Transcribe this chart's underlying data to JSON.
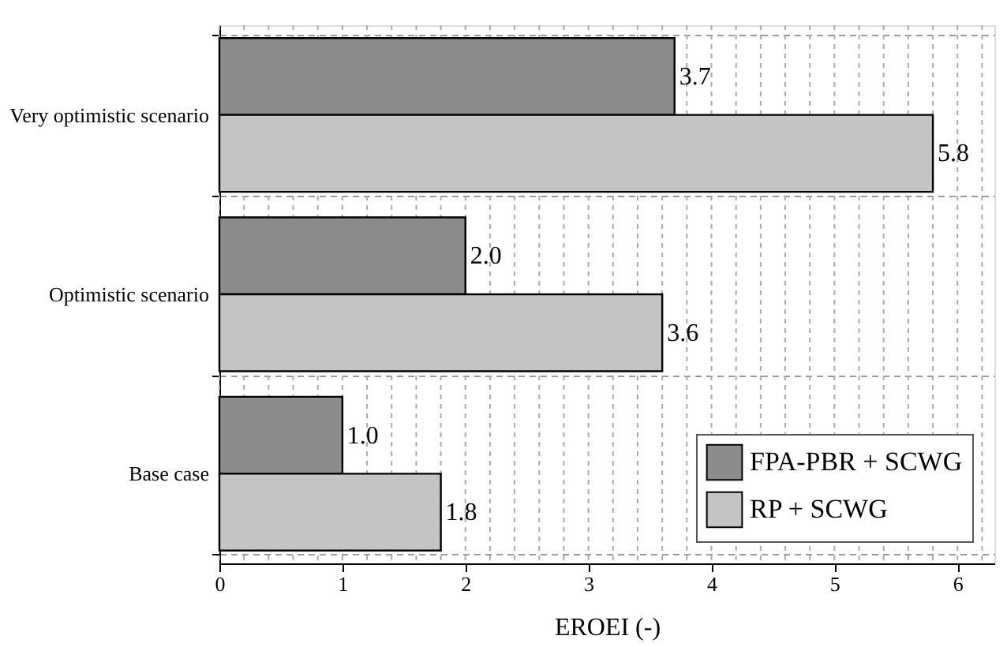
{
  "chart_data": {
    "type": "bar",
    "orientation": "horizontal",
    "xlabel": "EROEI (-)",
    "categories": [
      "Very optimistic scenario",
      "Optimistic scenario",
      "Base case"
    ],
    "series": [
      {
        "name": "FPA-PBR + SCWG",
        "color": "#8c8c8c",
        "values": [
          3.7,
          2.0,
          1.0
        ],
        "value_labels": [
          "3.7",
          "2.0",
          "1.0"
        ]
      },
      {
        "name": "RP + SCWG",
        "color": "#c4c4c4",
        "values": [
          5.8,
          3.6,
          1.8
        ],
        "value_labels": [
          "5.8",
          "3.6",
          "1.8"
        ]
      }
    ],
    "xlim": [
      0,
      6.3
    ],
    "xticks": [
      0,
      {
        "value": 0.2,
        "label": null
      },
      {
        "value": 0.4,
        "label": null
      },
      {
        "value": 0.6,
        "label": null
      },
      {
        "value": 0.8,
        "label": null
      },
      1,
      {
        "value": 1.2,
        "label": null
      },
      {
        "value": 1.4,
        "label": null
      },
      {
        "value": 1.6,
        "label": null
      },
      {
        "value": 1.8,
        "label": null
      },
      2,
      {
        "value": 2.2,
        "label": null
      },
      {
        "value": 2.4,
        "label": null
      },
      {
        "value": 2.6,
        "label": null
      },
      {
        "value": 2.8,
        "label": null
      },
      3,
      {
        "value": 3.2,
        "label": null
      },
      {
        "value": 3.4,
        "label": null
      },
      {
        "value": 3.6,
        "label": null
      },
      {
        "value": 3.8,
        "label": null
      },
      4,
      {
        "value": 4.2,
        "label": null
      },
      {
        "value": 4.4,
        "label": null
      },
      {
        "value": 4.6,
        "label": null
      },
      {
        "value": 4.8,
        "label": null
      },
      5,
      {
        "value": 5.2,
        "label": null
      },
      {
        "value": 5.4,
        "label": null
      },
      {
        "value": 5.6,
        "label": null
      },
      {
        "value": 5.8,
        "label": null
      },
      6,
      {
        "value": 6.2,
        "label": null
      }
    ],
    "grid": true,
    "legend": "bottom right"
  }
}
